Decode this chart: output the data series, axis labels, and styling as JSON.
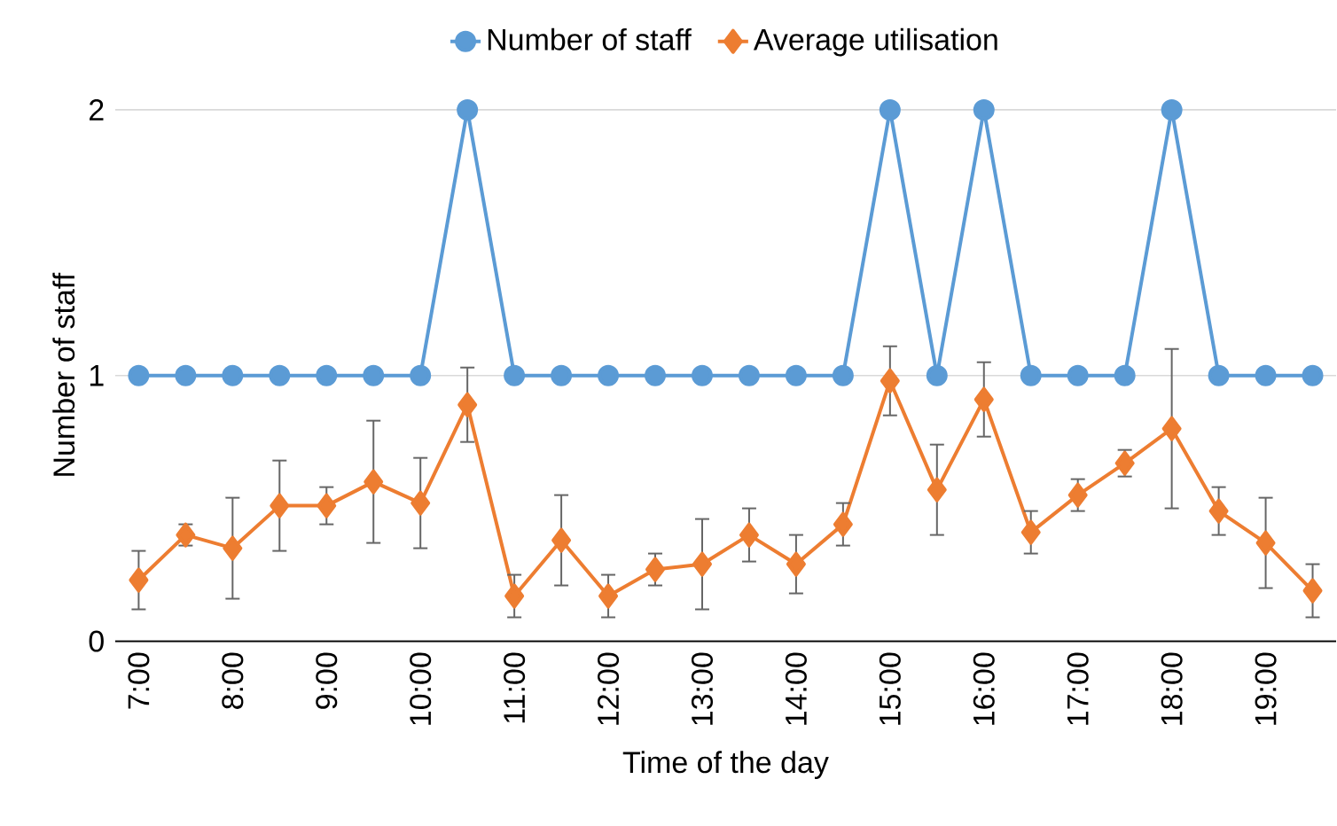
{
  "chart_data": {
    "type": "line",
    "xlabel": "Time of the day",
    "ylabel": "Number of staff",
    "categories": [
      "7:00",
      null,
      "8:00",
      null,
      "9:00",
      null,
      "10:00",
      null,
      "11:00",
      null,
      "12:00",
      null,
      "13:00",
      null,
      "14:00",
      null,
      "15:00",
      null,
      "16:00",
      null,
      "17:00",
      null,
      "18:00",
      null,
      "19:00",
      null
    ],
    "series": [
      {
        "name": "Number of staff",
        "color": "#5b9bd5",
        "marker": "circle",
        "values": [
          1,
          1,
          1,
          1,
          1,
          1,
          1,
          2,
          1,
          1,
          1,
          1,
          1,
          1,
          1,
          1,
          2,
          1,
          2,
          1,
          1,
          1,
          2,
          1,
          1,
          1
        ]
      },
      {
        "name": "Average utilisation",
        "color": "#ed7d31",
        "marker": "diamond",
        "values": [
          0.23,
          0.4,
          0.35,
          0.51,
          0.51,
          0.6,
          0.52,
          0.89,
          0.17,
          0.38,
          0.17,
          0.27,
          0.29,
          0.4,
          0.29,
          0.44,
          0.98,
          0.57,
          0.91,
          0.41,
          0.55,
          0.67,
          0.8,
          0.49,
          0.37,
          0.19
        ],
        "errors": [
          0.11,
          0.04,
          0.19,
          0.17,
          0.07,
          0.23,
          0.17,
          0.14,
          0.08,
          0.17,
          0.08,
          0.06,
          0.17,
          0.1,
          0.11,
          0.08,
          0.13,
          0.17,
          0.14,
          0.08,
          0.06,
          0.05,
          0.3,
          0.09,
          0.17,
          0.1
        ]
      }
    ],
    "ylim": [
      0,
      2
    ],
    "yticks": [
      0,
      1,
      2
    ],
    "grid": "y",
    "legend": "top"
  }
}
